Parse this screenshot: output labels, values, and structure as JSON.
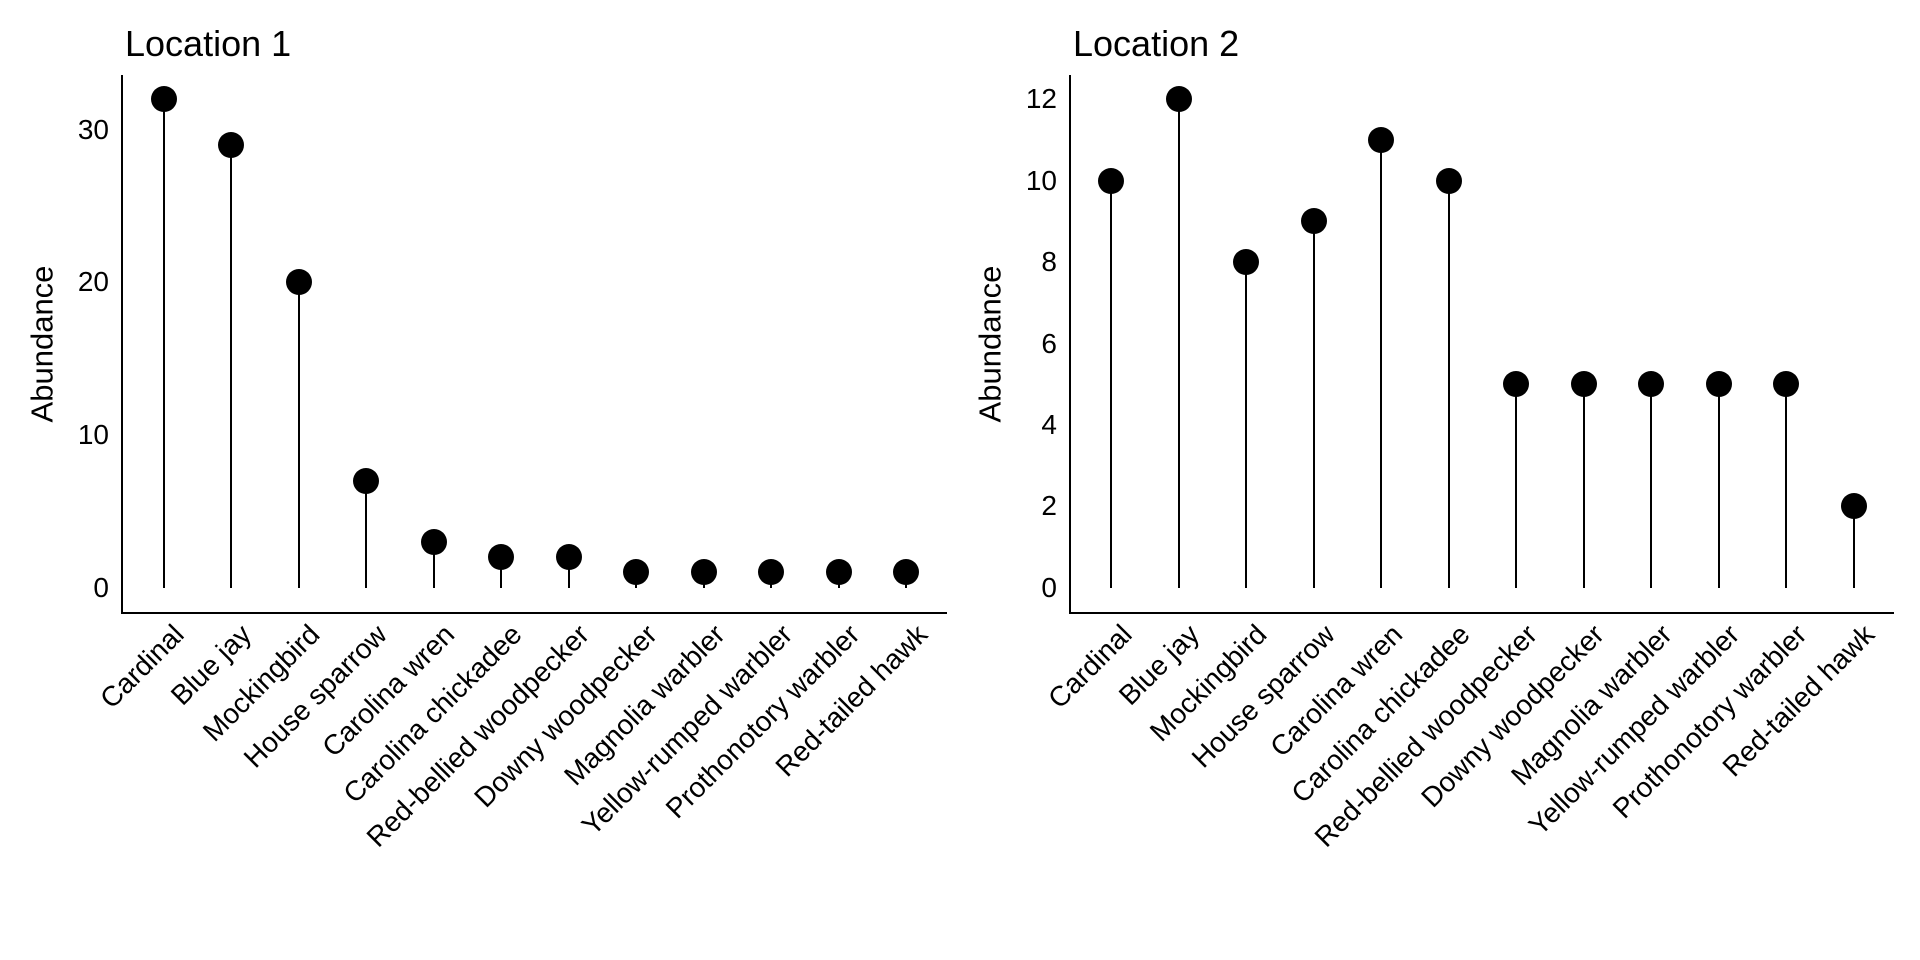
{
  "page": {
    "background_color": "#ffffff",
    "text_color": "#000000"
  },
  "chart_data": [
    {
      "type": "scatter",
      "style": "lollipop",
      "title": "Location 1",
      "xlabel": "",
      "ylabel": "Abundance",
      "categories": [
        "Cardinal",
        "Blue jay",
        "Mockingbird",
        "House sparrow",
        "Carolina wren",
        "Carolina chickadee",
        "Red-bellied woodpecker",
        "Downy woodpecker",
        "Magnolia warbler",
        "Yellow-rumped warbler",
        "Prothonotory warbler",
        "Red-tailed hawk"
      ],
      "values": [
        32,
        29,
        20,
        7,
        3,
        2,
        2,
        1,
        1,
        1,
        1,
        1
      ],
      "yticks": [
        0,
        10,
        20,
        30
      ],
      "ylim": [
        0,
        32
      ],
      "grid": false,
      "legend": false,
      "x_tick_rotation_deg": 45,
      "marker": "filled-circle",
      "marker_color": "#000000",
      "stem_color": "#000000",
      "axis_color": "#000000"
    },
    {
      "type": "scatter",
      "style": "lollipop",
      "title": "Location 2",
      "xlabel": "",
      "ylabel": "Abundance",
      "categories": [
        "Cardinal",
        "Blue jay",
        "Mockingbird",
        "House sparrow",
        "Carolina wren",
        "Carolina chickadee",
        "Red-bellied woodpecker",
        "Downy woodpecker",
        "Magnolia warbler",
        "Yellow-rumped warbler",
        "Prothonotory warbler",
        "Red-tailed hawk"
      ],
      "values": [
        10,
        12,
        8,
        9,
        11,
        10,
        5,
        5,
        5,
        5,
        5,
        2
      ],
      "yticks": [
        0,
        2,
        4,
        6,
        8,
        10,
        12
      ],
      "ylim": [
        0,
        12
      ],
      "grid": false,
      "legend": false,
      "x_tick_rotation_deg": 45,
      "marker": "filled-circle",
      "marker_color": "#000000",
      "stem_color": "#000000",
      "axis_color": "#000000"
    }
  ]
}
